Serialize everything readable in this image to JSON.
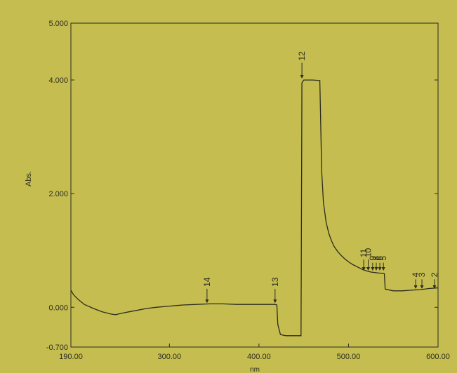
{
  "colors": {
    "background": "#c5bd4f",
    "plot_area": "#c5bd4f",
    "line": "#2c2c20",
    "axis": "#2c2c20",
    "text": "#2c2c20"
  },
  "chart_data": {
    "type": "line",
    "title": "",
    "xlabel": "nm",
    "ylabel": "Abs.",
    "xlim": [
      190,
      600
    ],
    "ylim": [
      -0.7,
      5.0
    ],
    "x_ticks": [
      {
        "value": 190,
        "label": "190.00"
      },
      {
        "value": 300,
        "label": "300.00"
      },
      {
        "value": 400,
        "label": "400.00"
      },
      {
        "value": 500,
        "label": "500.00"
      },
      {
        "value": 600,
        "label": "600.00"
      }
    ],
    "y_ticks": [
      {
        "value": 5.0,
        "label": "5.000"
      },
      {
        "value": 4.0,
        "label": "4.000"
      },
      {
        "value": 2.0,
        "label": "2.000"
      },
      {
        "value": 0.0,
        "label": "0.000"
      },
      {
        "value": -0.7,
        "label": "-0.700"
      }
    ],
    "grid": false,
    "series": [
      {
        "x": [
          190,
          193,
          198,
          205,
          215,
          225,
          235,
          240,
          245,
          255,
          265,
          275,
          285,
          300,
          315,
          330,
          345,
          360,
          375,
          390,
          405,
          418,
          420,
          421,
          424,
          430,
          440,
          447,
          448,
          450,
          460,
          468,
          469,
          470,
          472,
          475,
          478,
          481,
          484,
          488,
          492,
          496,
          500,
          505,
          510,
          515,
          520,
          525,
          530,
          535,
          538,
          540,
          541,
          550,
          560,
          570,
          580,
          590,
          598,
          600
        ],
        "y": [
          0.3,
          0.22,
          0.14,
          0.05,
          -0.02,
          -0.08,
          -0.12,
          -0.13,
          -0.11,
          -0.08,
          -0.05,
          -0.02,
          0.0,
          0.02,
          0.04,
          0.05,
          0.06,
          0.06,
          0.05,
          0.05,
          0.05,
          0.05,
          0.04,
          -0.3,
          -0.48,
          -0.5,
          -0.5,
          -0.5,
          3.95,
          4.0,
          4.0,
          3.99,
          3.2,
          2.4,
          1.85,
          1.5,
          1.3,
          1.17,
          1.07,
          0.98,
          0.91,
          0.85,
          0.8,
          0.75,
          0.71,
          0.67,
          0.64,
          0.62,
          0.61,
          0.6,
          0.6,
          0.59,
          0.32,
          0.29,
          0.29,
          0.3,
          0.31,
          0.33,
          0.34,
          0.34
        ]
      }
    ],
    "peaks": [
      {
        "label": "12",
        "x": 448,
        "y": 4.0,
        "label_above": 0.55
      },
      {
        "label": "14",
        "x": 342,
        "y": 0.05,
        "label_above": 0.5
      },
      {
        "label": "13",
        "x": 418,
        "y": 0.05,
        "label_above": 0.5
      },
      {
        "label": "11",
        "x": 517,
        "y": 0.62,
        "label_above": 0.4
      },
      {
        "label": "10",
        "x": 522,
        "y": 0.62,
        "label_above": 0.4
      },
      {
        "label": "9",
        "x": 527,
        "y": 0.62,
        "label_above": 0.3
      },
      {
        "label": "8",
        "x": 531,
        "y": 0.62,
        "label_above": 0.3
      },
      {
        "label": "6",
        "x": 535,
        "y": 0.62,
        "label_above": 0.3
      },
      {
        "label": "5",
        "x": 539,
        "y": 0.62,
        "label_above": 0.3
      },
      {
        "label": "4",
        "x": 575,
        "y": 0.3,
        "label_above": 0.35
      },
      {
        "label": "3",
        "x": 582,
        "y": 0.3,
        "label_above": 0.35
      },
      {
        "label": "2",
        "x": 596,
        "y": 0.3,
        "label_above": 0.35
      }
    ]
  }
}
